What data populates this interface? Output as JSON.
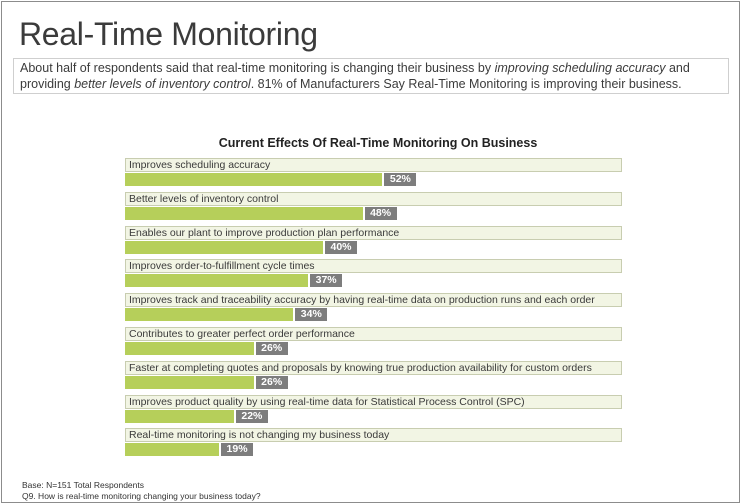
{
  "title": "Real-Time Monitoring",
  "intro": {
    "part1": "About half of respondents said that real-time monitoring is changing their business by ",
    "em1": "improving scheduling accuracy",
    "part2": " and providing ",
    "em2": "better levels of inventory control",
    "part3": ". 81% of Manufacturers Say Real-Time Monitoring is improving their business."
  },
  "chart_data": {
    "type": "bar",
    "orientation": "horizontal",
    "title": "Current Effects Of Real-Time Monitoring On Business",
    "xlim": [
      0,
      100
    ],
    "categories": [
      "Improves scheduling accuracy",
      "Better levels of inventory control",
      "Enables our plant to improve production plan performance",
      "Improves order-to-fulfillment cycle times",
      "Improves track and traceability accuracy by having real-time data on production runs and each order",
      "Contributes to greater perfect order performance",
      "Faster at completing quotes and proposals by knowing true production availability for custom orders",
      "Improves product quality by using real-time data for Statistical Process Control (SPC)",
      "Real-time monitoring is not changing my business today"
    ],
    "values": [
      52,
      48,
      40,
      37,
      34,
      26,
      26,
      22,
      19
    ],
    "value_labels": [
      "52%",
      "48%",
      "40%",
      "37%",
      "34%",
      "26%",
      "26%",
      "22%",
      "19%"
    ],
    "colors": {
      "bar": "#b6cf5a",
      "label": "#7d7d7d",
      "row": "#f2f5e4"
    }
  },
  "footer": {
    "base": "Base: N=151 Total Respondents",
    "question": "Q9. How is real-time monitoring changing your business today?"
  }
}
